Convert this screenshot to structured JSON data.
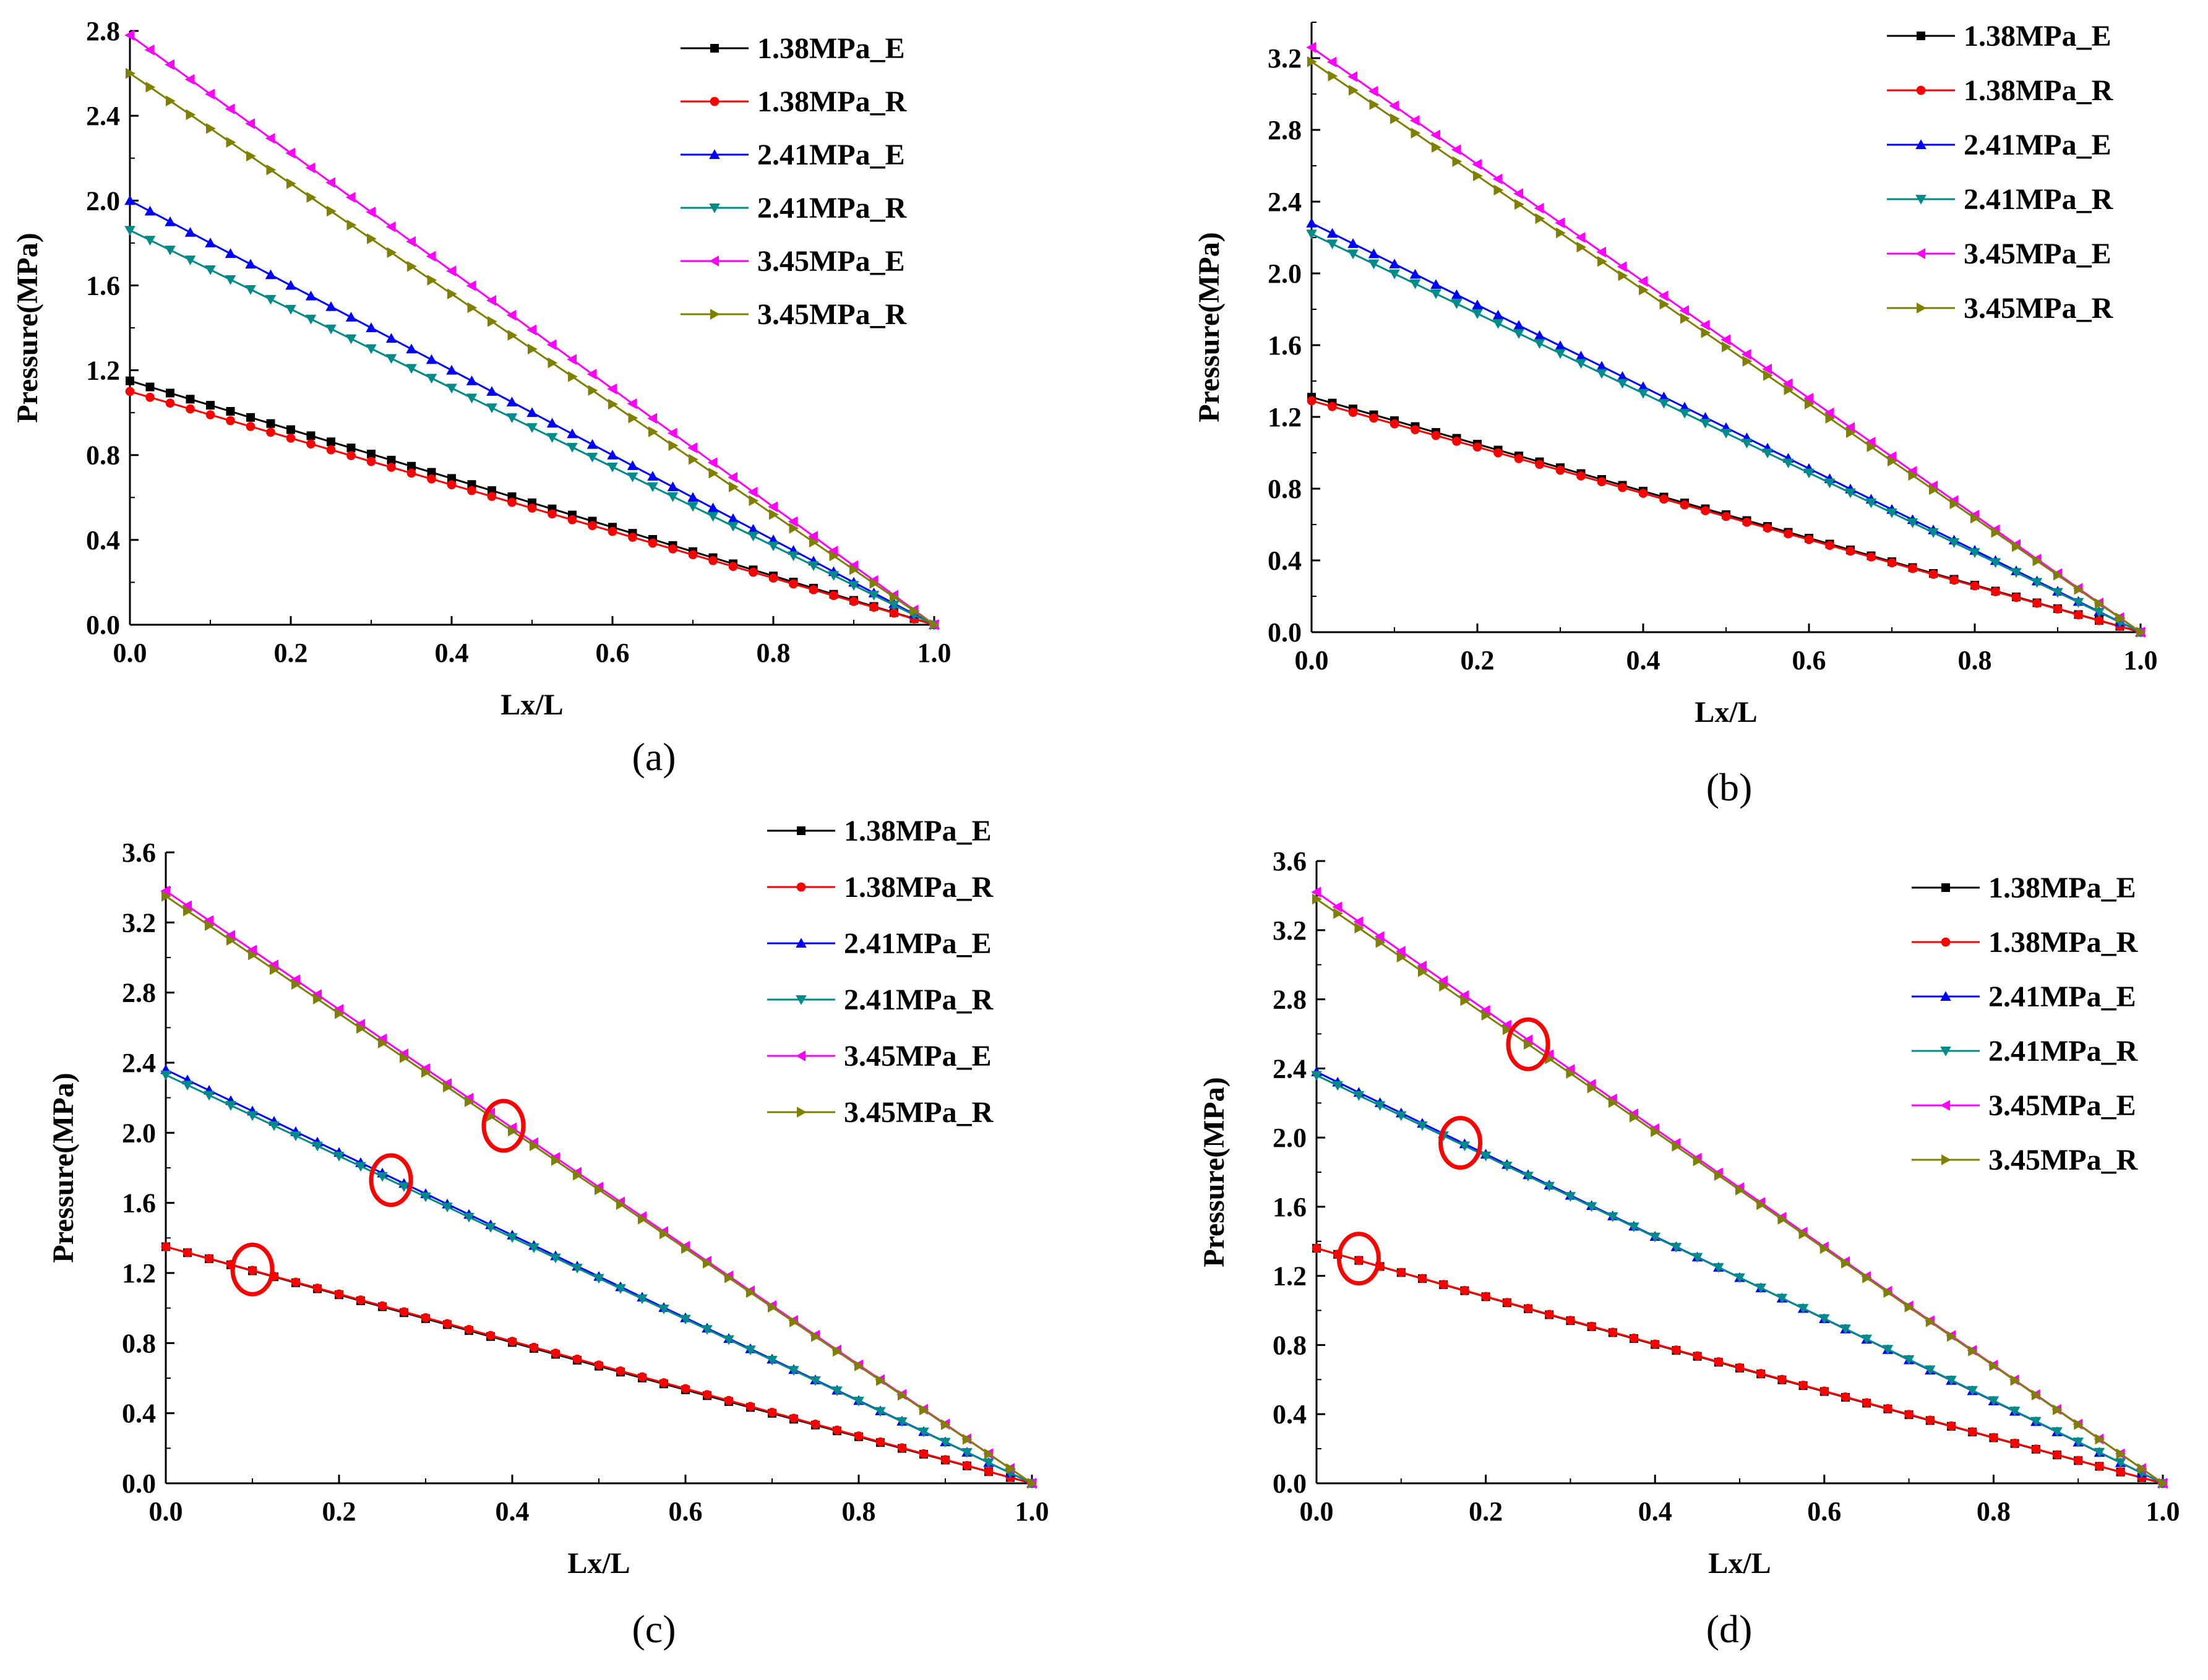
{
  "figure": {
    "panels": [
      "a",
      "b",
      "c",
      "d"
    ]
  },
  "chart_data": [
    {
      "type": "line",
      "panel_label": "(a)",
      "xlabel": "Lx/L",
      "ylabel": "Pressure(MPa)",
      "xlim": [
        0.0,
        1.0
      ],
      "ylim": [
        0.0,
        2.8
      ],
      "xticks": [
        "0.0",
        "0.2",
        "0.4",
        "0.6",
        "0.8",
        "1.0"
      ],
      "yticks": [
        "0.0",
        "0.4",
        "0.8",
        "1.2",
        "1.6",
        "2.0",
        "2.4",
        "2.8"
      ],
      "legend_position": "top-right",
      "series": [
        {
          "name": "1.38MPa_E",
          "color": "#000000",
          "marker": "square",
          "y_start": 1.15,
          "y_end": 0.0,
          "curvature": 0.0,
          "points": 40
        },
        {
          "name": "1.38MPa_R",
          "color": "#ff0000",
          "marker": "circle",
          "y_start": 1.1,
          "y_end": 0.0,
          "curvature": 0.0,
          "points": 40
        },
        {
          "name": "2.41MPa_E",
          "color": "#0000ff",
          "marker": "triangle-up",
          "y_start": 2.0,
          "y_end": 0.0,
          "curvature": 0.0,
          "points": 40
        },
        {
          "name": "2.41MPa_R",
          "color": "#008b8b",
          "marker": "triangle-down",
          "y_start": 1.86,
          "y_end": 0.0,
          "curvature": 0.0,
          "points": 40
        },
        {
          "name": "3.45MPa_E",
          "color": "#ff00ff",
          "marker": "triangle-left",
          "y_start": 2.78,
          "y_end": 0.0,
          "curvature": 0.0,
          "points": 40
        },
        {
          "name": "3.45MPa_R",
          "color": "#808000",
          "marker": "triangle-right",
          "y_start": 2.6,
          "y_end": 0.0,
          "curvature": 0.0,
          "points": 40
        }
      ],
      "annotations": []
    },
    {
      "type": "line",
      "panel_label": "(b)",
      "xlabel": "Lx/L",
      "ylabel": "Pressure(MPa)",
      "xlim": [
        0.0,
        1.0
      ],
      "ylim": [
        0.0,
        3.4
      ],
      "xticks": [
        "0.0",
        "0.2",
        "0.4",
        "0.6",
        "0.8",
        "1.0"
      ],
      "yticks": [
        "0.0",
        "0.4",
        "0.8",
        "1.2",
        "1.6",
        "2.0",
        "2.4",
        "2.8",
        "3.2"
      ],
      "legend_position": "top-right",
      "series": [
        {
          "name": "1.38MPa_E",
          "color": "#000000",
          "marker": "square",
          "y_start": 1.31,
          "y_end": 0.0,
          "curvature": 0.0,
          "points": 40
        },
        {
          "name": "1.38MPa_R",
          "color": "#ff0000",
          "marker": "circle",
          "y_start": 1.29,
          "y_end": 0.0,
          "curvature": 0.0,
          "points": 40
        },
        {
          "name": "2.41MPa_E",
          "color": "#0000ff",
          "marker": "triangle-up",
          "y_start": 2.28,
          "y_end": 0.0,
          "curvature": 0.0,
          "points": 40
        },
        {
          "name": "2.41MPa_R",
          "color": "#008b8b",
          "marker": "triangle-down",
          "y_start": 2.22,
          "y_end": 0.0,
          "curvature": 0.0,
          "points": 40
        },
        {
          "name": "3.45MPa_E",
          "color": "#ff00ff",
          "marker": "triangle-left",
          "y_start": 3.26,
          "y_end": 0.0,
          "curvature": 0.0,
          "points": 40
        },
        {
          "name": "3.45MPa_R",
          "color": "#808000",
          "marker": "triangle-right",
          "y_start": 3.18,
          "y_end": 0.0,
          "curvature": 0.0,
          "points": 40
        }
      ],
      "annotations": []
    },
    {
      "type": "line",
      "panel_label": "(c)",
      "xlabel": "Lx/L",
      "ylabel": "Pressure(MPa)",
      "xlim": [
        0.0,
        1.0
      ],
      "ylim": [
        0.0,
        3.6
      ],
      "xticks": [
        "0.0",
        "0.2",
        "0.4",
        "0.6",
        "0.8",
        "1.0"
      ],
      "yticks": [
        "0.0",
        "0.4",
        "0.8",
        "1.2",
        "1.6",
        "2.0",
        "2.4",
        "2.8",
        "3.2",
        "3.6"
      ],
      "legend_position": "top-right",
      "series": [
        {
          "name": "1.38MPa_E",
          "color": "#000000",
          "marker": "square",
          "y_start": 1.35,
          "y_end": 0.0,
          "curvature": 0.05,
          "points": 40
        },
        {
          "name": "1.38MPa_R",
          "color": "#ff0000",
          "marker": "circle",
          "y_start": 1.35,
          "y_end": 0.0,
          "curvature": 0.0,
          "points": 40
        },
        {
          "name": "2.41MPa_E",
          "color": "#0000ff",
          "marker": "triangle-up",
          "y_start": 2.36,
          "y_end": 0.0,
          "curvature": 0.0,
          "points": 40
        },
        {
          "name": "2.41MPa_R",
          "color": "#008b8b",
          "marker": "triangle-down",
          "y_start": 2.33,
          "y_end": 0.0,
          "curvature": -0.02,
          "points": 40
        },
        {
          "name": "3.45MPa_E",
          "color": "#ff00ff",
          "marker": "triangle-left",
          "y_start": 3.38,
          "y_end": 0.0,
          "curvature": 0.0,
          "points": 40
        },
        {
          "name": "3.45MPa_R",
          "color": "#808000",
          "marker": "triangle-right",
          "y_start": 3.35,
          "y_end": 0.0,
          "curvature": 0.0,
          "points": 40
        }
      ],
      "annotations": [
        {
          "type": "circle",
          "x": 0.1,
          "y": 1.22,
          "color": "#ff0000"
        },
        {
          "type": "circle",
          "x": 0.26,
          "y": 1.73,
          "color": "#ff0000"
        },
        {
          "type": "circle",
          "x": 0.39,
          "y": 2.04,
          "color": "#ff0000"
        }
      ]
    },
    {
      "type": "line",
      "panel_label": "(d)",
      "xlabel": "Lx/L",
      "ylabel": "Pressure(MPa)",
      "xlim": [
        0.0,
        1.0
      ],
      "ylim": [
        0.0,
        3.6
      ],
      "xticks": [
        "0.0",
        "0.2",
        "0.4",
        "0.6",
        "0.8",
        "1.0"
      ],
      "yticks": [
        "0.0",
        "0.4",
        "0.8",
        "1.2",
        "1.6",
        "2.0",
        "2.4",
        "2.8",
        "3.2",
        "3.6"
      ],
      "legend_position": "top-right",
      "series": [
        {
          "name": "1.38MPa_E",
          "color": "#000000",
          "marker": "square",
          "y_start": 1.36,
          "y_end": 0.0,
          "curvature": 0.1,
          "points": 40
        },
        {
          "name": "1.38MPa_R",
          "color": "#ff0000",
          "marker": "circle",
          "y_start": 1.36,
          "y_end": 0.0,
          "curvature": 0.08,
          "points": 40
        },
        {
          "name": "2.41MPa_E",
          "color": "#0000ff",
          "marker": "triangle-up",
          "y_start": 2.38,
          "y_end": 0.0,
          "curvature": 0.0,
          "points": 40
        },
        {
          "name": "2.41MPa_R",
          "color": "#008b8b",
          "marker": "triangle-down",
          "y_start": 2.36,
          "y_end": 0.0,
          "curvature": -0.04,
          "points": 40
        },
        {
          "name": "3.45MPa_E",
          "color": "#ff00ff",
          "marker": "triangle-left",
          "y_start": 3.42,
          "y_end": 0.0,
          "curvature": 0.0,
          "points": 40
        },
        {
          "name": "3.45MPa_R",
          "color": "#808000",
          "marker": "triangle-right",
          "y_start": 3.38,
          "y_end": 0.0,
          "curvature": -0.02,
          "points": 40
        }
      ],
      "annotations": [
        {
          "type": "circle",
          "x": 0.05,
          "y": 1.3,
          "color": "#ff0000"
        },
        {
          "type": "circle",
          "x": 0.17,
          "y": 1.97,
          "color": "#ff0000"
        },
        {
          "type": "circle",
          "x": 0.25,
          "y": 2.54,
          "color": "#ff0000"
        }
      ]
    }
  ]
}
